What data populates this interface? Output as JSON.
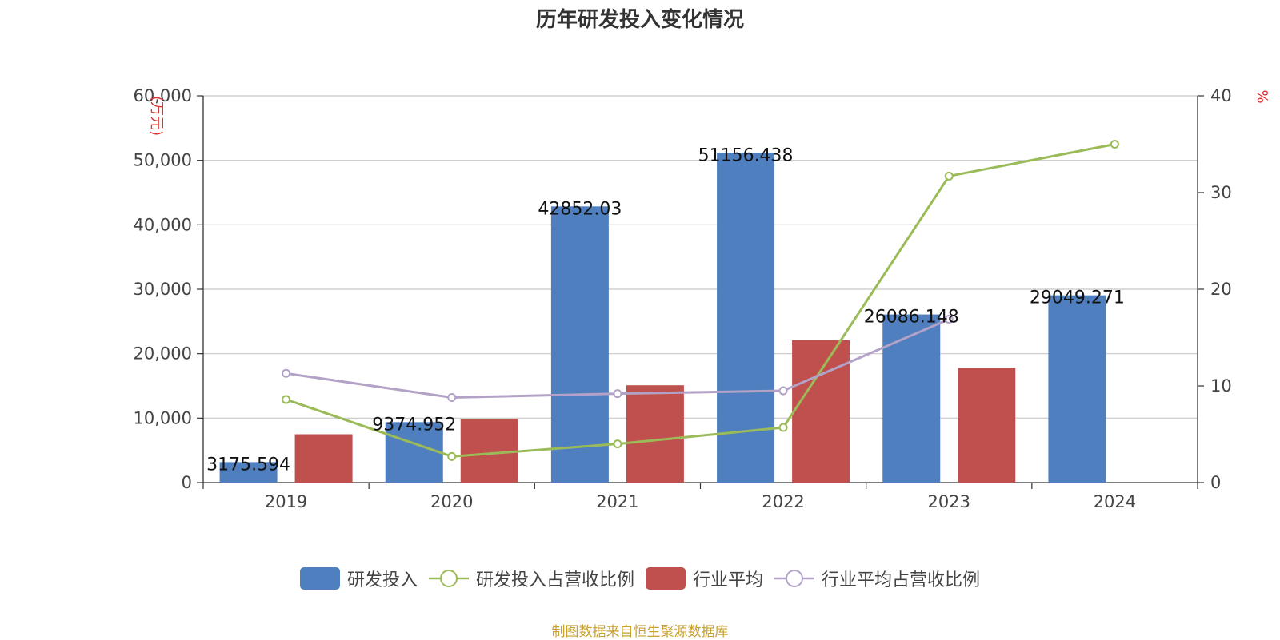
{
  "chart_data": {
    "type": "bar",
    "title": "历年研发投入变化情况",
    "categories": [
      "2019",
      "2020",
      "2021",
      "2022",
      "2023",
      "2024"
    ],
    "y_left": {
      "unit_label": "(万元)",
      "min": 0,
      "max": 60000,
      "ticks": [
        "0",
        "10,000",
        "20,000",
        "30,000",
        "40,000",
        "50,000",
        "60,000"
      ]
    },
    "y_right": {
      "unit_label": "%",
      "min": 0,
      "max": 40,
      "ticks": [
        "0",
        "10",
        "20",
        "30",
        "40"
      ]
    },
    "grid": true,
    "legend_position": "bottom",
    "series": [
      {
        "name": "研发投入",
        "type": "bar",
        "axis": "left",
        "color": "#4f7fbe",
        "values": [
          3175.594,
          9374.952,
          42852.03,
          51156.438,
          26086.148,
          29049.271
        ],
        "labels": [
          "3175.594",
          "9374.952",
          "42852.03",
          "51156.438",
          "26086.148",
          "29049.271"
        ]
      },
      {
        "name": "研发投入占营收比例",
        "type": "line",
        "axis": "right",
        "color": "#9bbb59",
        "values": [
          8.6,
          2.7,
          4.0,
          5.7,
          31.7,
          35.0
        ]
      },
      {
        "name": "行业平均",
        "type": "bar",
        "axis": "left",
        "color": "#c0504d",
        "values": [
          7500,
          9900,
          15100,
          22100,
          17800,
          null
        ]
      },
      {
        "name": "行业平均占营收比例",
        "type": "line",
        "axis": "right",
        "color": "#b3a2c7",
        "values": [
          11.3,
          8.8,
          9.2,
          9.5,
          16.9,
          null
        ]
      }
    ]
  },
  "legend": [
    {
      "label": "研发投入",
      "kind": "bar",
      "color": "#4f7fbe"
    },
    {
      "label": "研发投入占营收比例",
      "kind": "line",
      "color": "#9bbb59"
    },
    {
      "label": "行业平均",
      "kind": "bar",
      "color": "#c0504d"
    },
    {
      "label": "行业平均占营收比例",
      "kind": "line",
      "color": "#b3a2c7"
    }
  ],
  "footer": {
    "source": "制图数据来自恒生聚源数据库"
  }
}
